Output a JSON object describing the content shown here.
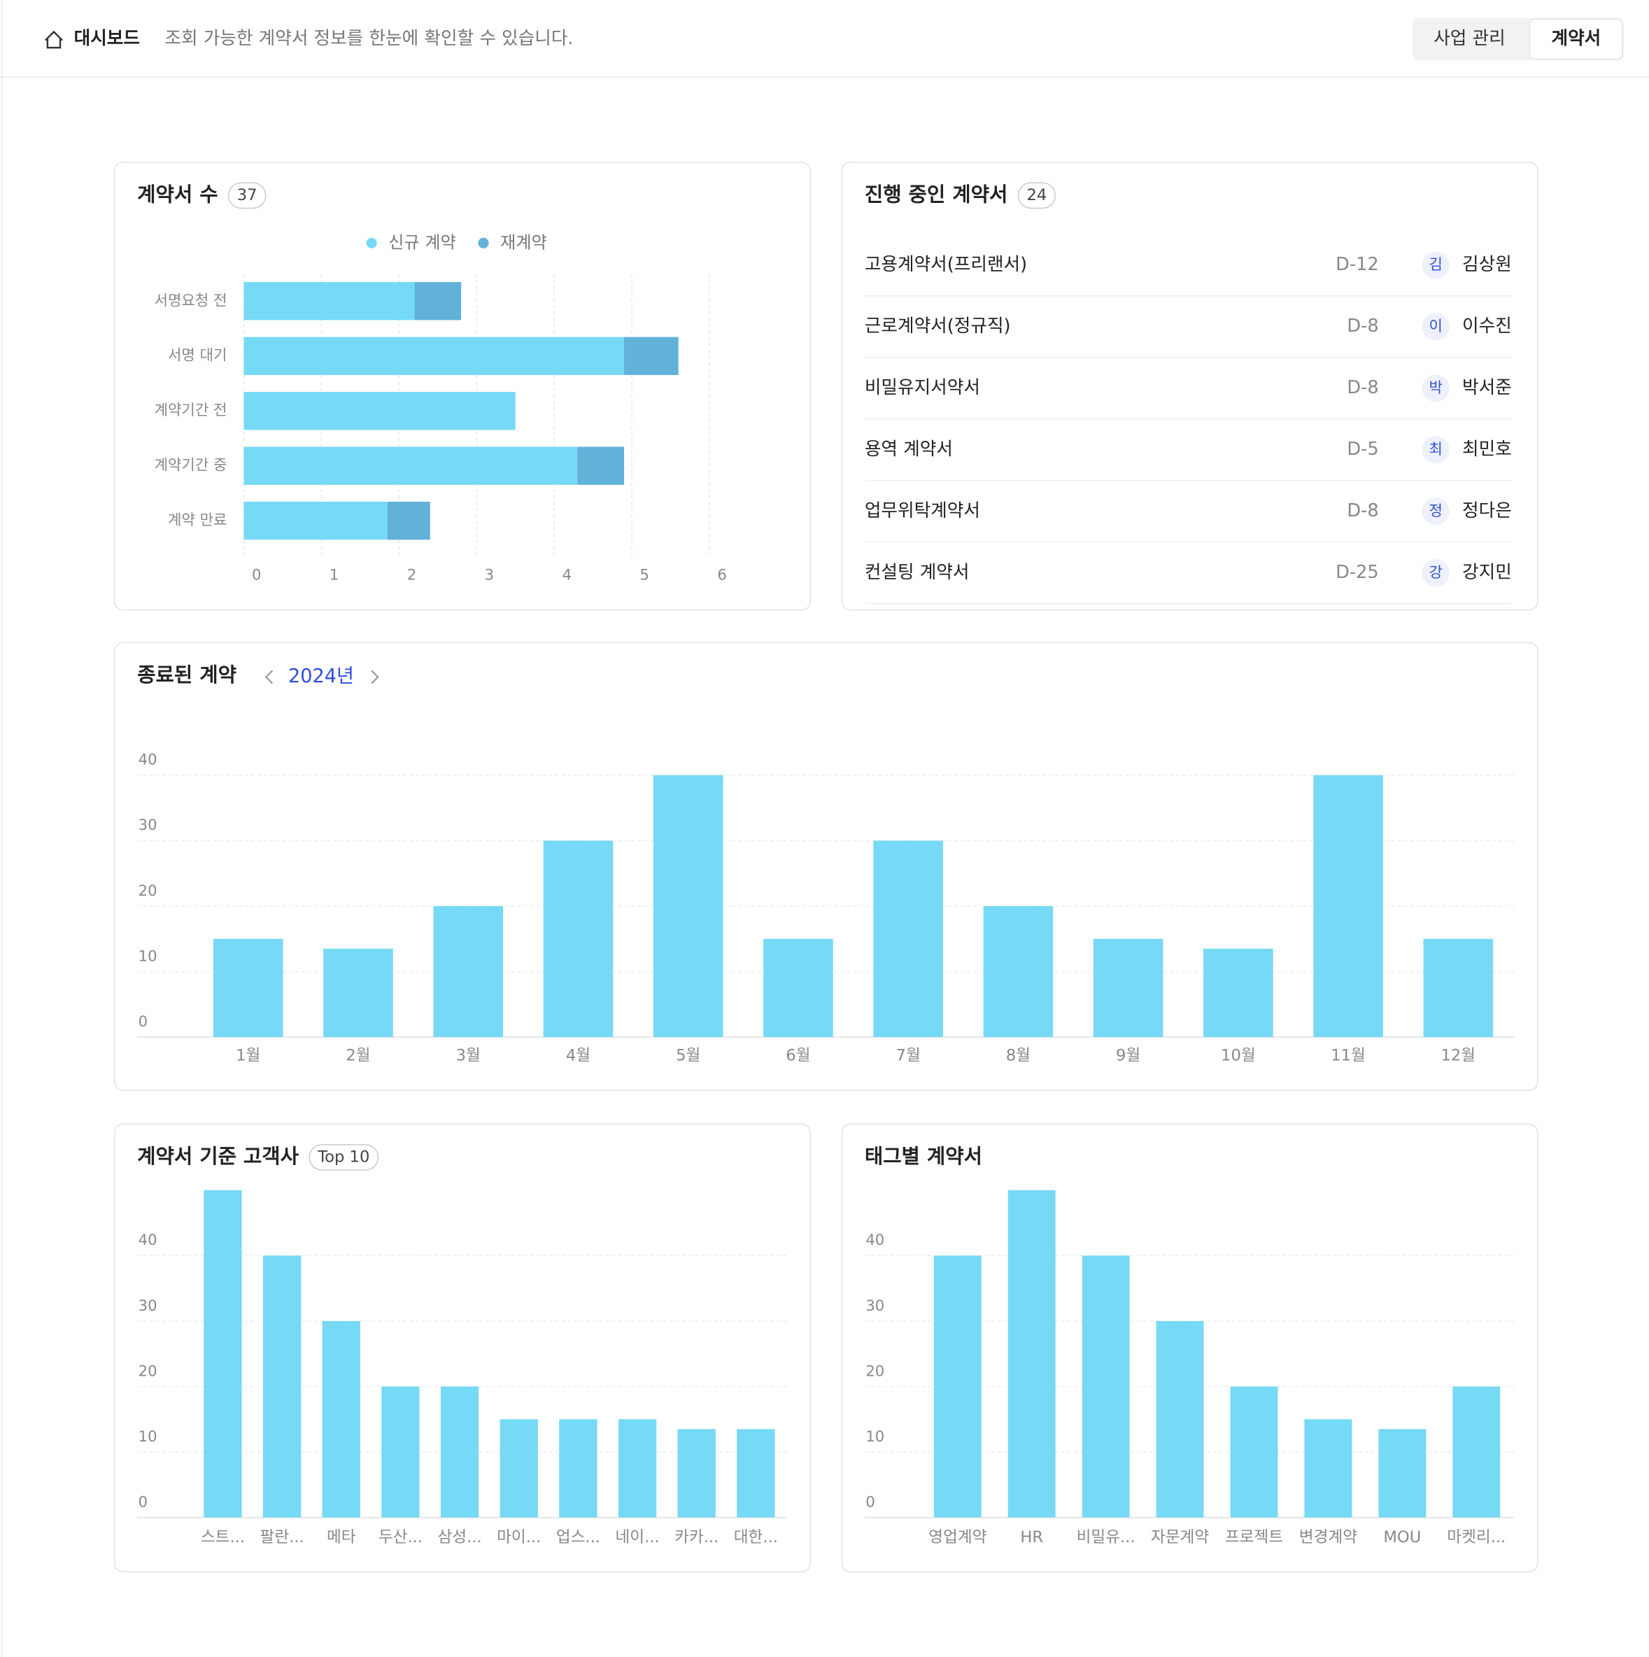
{
  "header": {
    "title": "대시보드",
    "description": "조회 가능한 계약서 정보를 한눈에 확인할 수 있습니다.",
    "tabs": [
      "사업 관리",
      "계약서"
    ]
  },
  "in_progress": {
    "title": "진행 중인 계약서",
    "count": 24,
    "rows": [
      {
        "name": "고용계약서(프리랜서)",
        "due": "D-12",
        "initial": "김",
        "person": "김상원"
      },
      {
        "name": "근로계약서(정규직)",
        "due": "D-8",
        "initial": "이",
        "person": "이수진"
      },
      {
        "name": "비밀유지서약서",
        "due": "D-8",
        "initial": "박",
        "person": "박서준"
      },
      {
        "name": "용역 계약서",
        "due": "D-5",
        "initial": "최",
        "person": "최민호"
      },
      {
        "name": "업무위탁계약서",
        "due": "D-8",
        "initial": "정",
        "person": "정다은"
      },
      {
        "name": "컨설팅 계약서",
        "due": "D-25",
        "initial": "강",
        "person": "강지민"
      }
    ]
  },
  "chart_data": [
    {
      "type": "hbar",
      "title": "계약서 수",
      "count": 37,
      "categories": [
        "서명요청 전",
        "서명 대기",
        "계약기간 전",
        "계약기간 중",
        "계약 만료"
      ],
      "series": [
        {
          "name": "신규 계약",
          "color": "#76d9f5",
          "values": [
            2.2,
            4.9,
            3.5,
            4.3,
            1.85
          ]
        },
        {
          "name": "재계약",
          "color": "#62b1d9",
          "values": [
            0.6,
            0.7,
            0,
            0.6,
            0.55
          ]
        }
      ],
      "xlim": [
        0,
        6
      ],
      "xticks": [
        0,
        1,
        2,
        3,
        4,
        5,
        6
      ],
      "grid": true
    },
    {
      "type": "bar",
      "title": "종료된 계약",
      "period": "2024년",
      "categories": [
        "1월",
        "2월",
        "3월",
        "4월",
        "5월",
        "6월",
        "7월",
        "8월",
        "9월",
        "10월",
        "11월",
        "12월"
      ],
      "values": [
        15,
        13.5,
        20,
        30,
        40,
        15,
        30,
        20,
        15,
        13.5,
        40,
        15
      ],
      "color": "#76d9f5",
      "ylim": [
        0,
        40
      ],
      "yticks": [
        0,
        10,
        20,
        30,
        40
      ],
      "grid": true
    },
    {
      "type": "bar",
      "title": "계약서 기준 고객사",
      "badge": "Top 10",
      "categories": [
        "스트...",
        "팔란...",
        "메타",
        "두산...",
        "삼성...",
        "마이...",
        "업스...",
        "네이...",
        "카카...",
        "대한..."
      ],
      "values": [
        50,
        40,
        30,
        20,
        20,
        15,
        15,
        15,
        13.5,
        13.5
      ],
      "color": "#76d9f5",
      "ylim": [
        0,
        50
      ],
      "yticks": [
        0,
        10,
        20,
        30,
        40
      ],
      "grid": true
    },
    {
      "type": "bar",
      "title": "태그별 계약서",
      "categories": [
        "영업계약",
        "HR",
        "비밀유...",
        "자문계약",
        "프로젝트",
        "변경계약",
        "MOU",
        "마켓리..."
      ],
      "values": [
        40,
        50,
        40,
        30,
        20,
        15,
        13.5,
        20
      ],
      "color": "#76d9f5",
      "ylim": [
        0,
        50
      ],
      "yticks": [
        0,
        10,
        20,
        30,
        40
      ],
      "grid": true
    }
  ]
}
